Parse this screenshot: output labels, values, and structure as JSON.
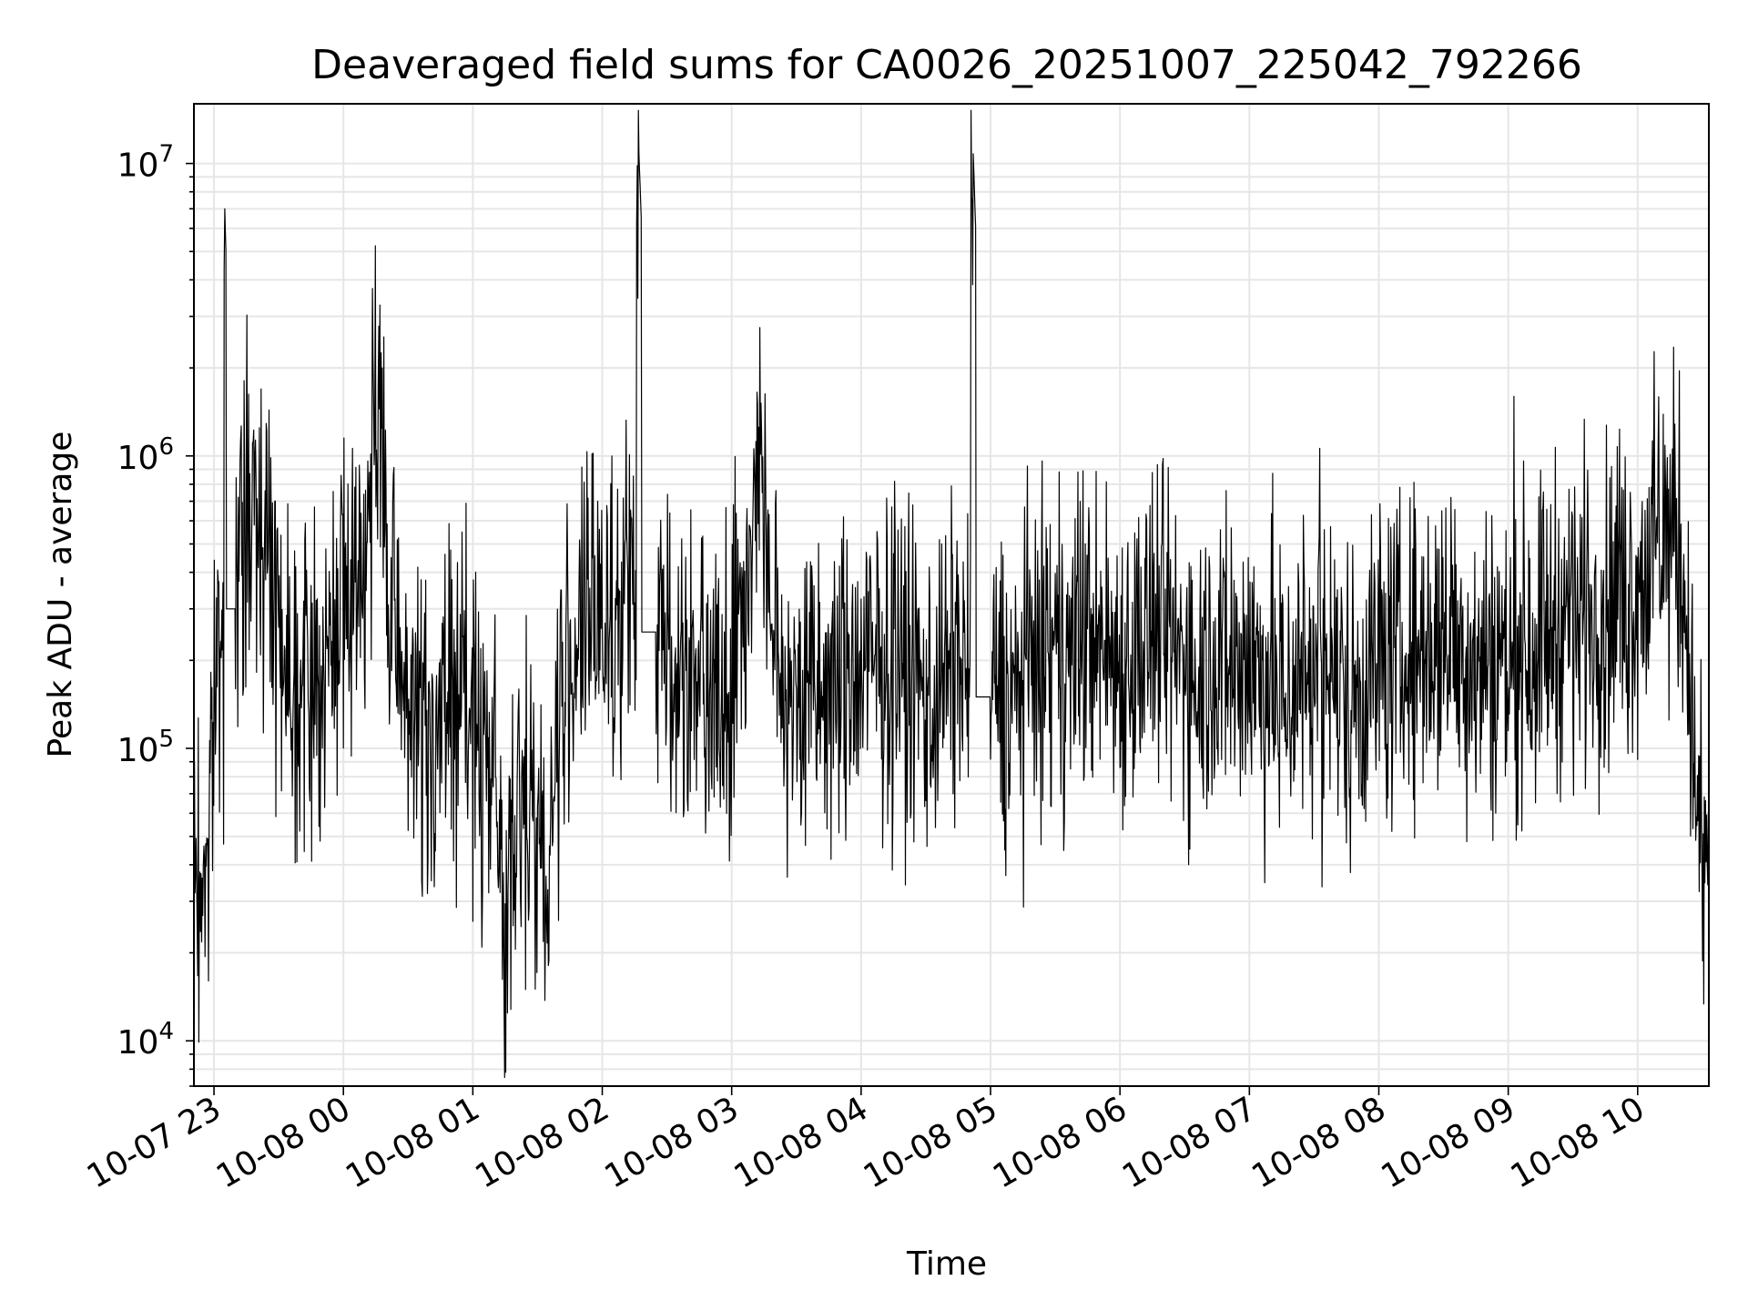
{
  "chart_data": {
    "type": "line",
    "title": "Deaveraged field sums for CA0026_20251007_225042_792266",
    "xlabel": "Time",
    "ylabel": "Peak ADU - average",
    "yscale": "log",
    "ylim": [
      7000,
      16000000
    ],
    "xlim": [
      "2025-10-07 22:50:42",
      "2025-10-08 10:33:00"
    ],
    "grid": true,
    "line_color": "#000000",
    "grid_color": "#e6e6e6",
    "x_ticks": [
      {
        "value": "2025-10-07 23:00",
        "label": "10-07 23"
      },
      {
        "value": "2025-10-08 00:00",
        "label": "10-08 00"
      },
      {
        "value": "2025-10-08 01:00",
        "label": "10-08 01"
      },
      {
        "value": "2025-10-08 02:00",
        "label": "10-08 02"
      },
      {
        "value": "2025-10-08 03:00",
        "label": "10-08 03"
      },
      {
        "value": "2025-10-08 04:00",
        "label": "10-08 04"
      },
      {
        "value": "2025-10-08 05:00",
        "label": "10-08 05"
      },
      {
        "value": "2025-10-08 06:00",
        "label": "10-08 06"
      },
      {
        "value": "2025-10-08 07:00",
        "label": "10-08 07"
      },
      {
        "value": "2025-10-08 08:00",
        "label": "10-08 08"
      },
      {
        "value": "2025-10-08 09:00",
        "label": "10-08 09"
      },
      {
        "value": "2025-10-08 10:00",
        "label": "10-08 10"
      }
    ],
    "y_ticks": [
      {
        "value": 10000,
        "base": "10",
        "exp": "4"
      },
      {
        "value": 100000,
        "base": "10",
        "exp": "5"
      },
      {
        "value": 1000000,
        "base": "10",
        "exp": "6"
      },
      {
        "value": 10000000,
        "base": "10",
        "exp": "7"
      }
    ],
    "series": [
      {
        "x": [
          "2025-10-07 22:50:42",
          "2025-10-07 22:54",
          "2025-10-07 22:58",
          "2025-10-07 23:02",
          "2025-10-07 23:05",
          "2025-10-07 23:10",
          "2025-10-07 23:15",
          "2025-10-07 23:20",
          "2025-10-07 23:25",
          "2025-10-07 23:30",
          "2025-10-07 23:35",
          "2025-10-07 23:40",
          "2025-10-07 23:45",
          "2025-10-07 23:50",
          "2025-10-07 23:55",
          "2025-10-08 00:00",
          "2025-10-08 00:10",
          "2025-10-08 00:18",
          "2025-10-08 00:20",
          "2025-10-08 00:30",
          "2025-10-08 00:40",
          "2025-10-08 00:50",
          "2025-10-08 01:00",
          "2025-10-08 01:10",
          "2025-10-08 01:15",
          "2025-10-08 01:20",
          "2025-10-08 01:25",
          "2025-10-08 01:30",
          "2025-10-08 01:35",
          "2025-10-08 01:40",
          "2025-10-08 01:50",
          "2025-10-08 02:00",
          "2025-10-08 02:10",
          "2025-10-08 02:17",
          "2025-10-08 02:25",
          "2025-10-08 02:35",
          "2025-10-08 02:45",
          "2025-10-08 03:00",
          "2025-10-08 03:10",
          "2025-10-08 03:12",
          "2025-10-08 03:20",
          "2025-10-08 03:30",
          "2025-10-08 03:45",
          "2025-10-08 04:00",
          "2025-10-08 04:15",
          "2025-10-08 04:30",
          "2025-10-08 04:45",
          "2025-10-08 04:52",
          "2025-10-08 05:00",
          "2025-10-08 05:10",
          "2025-10-08 05:20",
          "2025-10-08 05:30",
          "2025-10-08 05:45",
          "2025-10-08 06:00",
          "2025-10-08 06:15",
          "2025-10-08 06:30",
          "2025-10-08 06:45",
          "2025-10-08 07:00",
          "2025-10-08 07:15",
          "2025-10-08 07:30",
          "2025-10-08 07:45",
          "2025-10-08 08:00",
          "2025-10-08 08:15",
          "2025-10-08 08:30",
          "2025-10-08 08:45",
          "2025-10-08 09:00",
          "2025-10-08 09:15",
          "2025-10-08 09:30",
          "2025-10-08 09:45",
          "2025-10-08 10:00",
          "2025-10-08 10:10",
          "2025-10-08 10:18",
          "2025-10-08 10:24",
          "2025-10-08 10:28",
          "2025-10-08 10:33"
        ],
        "y": [
          45000,
          30000,
          60000,
          250000,
          7000000,
          300000,
          600000,
          700000,
          500000,
          300000,
          200000,
          150000,
          200000,
          150000,
          250000,
          300000,
          500000,
          1600000,
          300000,
          150000,
          100000,
          150000,
          120000,
          100000,
          20000,
          50000,
          80000,
          60000,
          30000,
          150000,
          250000,
          280000,
          300000,
          10800000,
          250000,
          200000,
          150000,
          200000,
          500000,
          1400000,
          200000,
          150000,
          150000,
          180000,
          200000,
          150000,
          200000,
          10800000,
          150000,
          150000,
          200000,
          200000,
          250000,
          200000,
          250000,
          200000,
          200000,
          200000,
          150000,
          200000,
          150000,
          200000,
          200000,
          250000,
          200000,
          200000,
          250000,
          300000,
          300000,
          350000,
          500000,
          600000,
          200000,
          50000,
          30000
        ]
      }
    ]
  }
}
